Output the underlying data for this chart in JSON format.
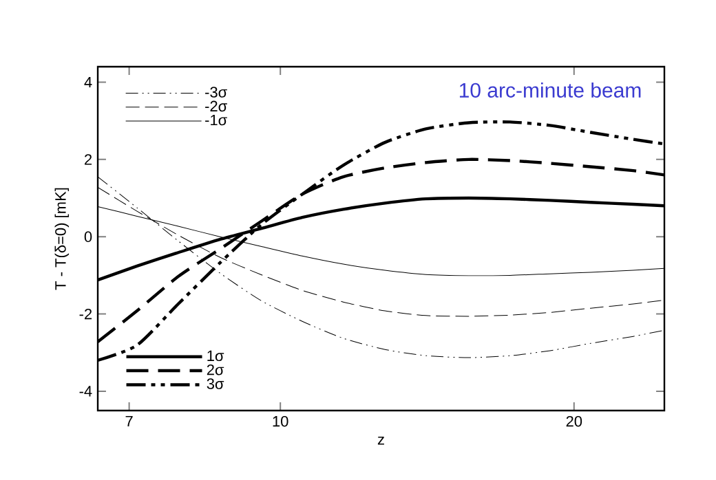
{
  "chart_data": {
    "type": "line",
    "xlabel": "z",
    "ylabel": "T - T(δ=0)   [mK]",
    "annotations": [
      "10 arc-minute beam"
    ],
    "x": [
      6.5,
      7.13,
      7.86,
      8.67,
      9.55,
      10.53,
      11.6,
      12.8,
      14.1,
      15.6,
      17.2,
      18.9,
      20.8,
      23.0,
      24.75
    ],
    "series": [
      {
        "name": "-3σ",
        "color": "#000000",
        "line_style": "dashdotdotted",
        "values": [
          1.55,
          0.75,
          -0.11,
          -0.94,
          -1.65,
          -2.19,
          -2.63,
          -2.92,
          -3.08,
          -3.13,
          -3.08,
          -2.95,
          -2.76,
          -2.58,
          -2.42
        ]
      },
      {
        "name": "-2σ",
        "color": "#000000",
        "line_style": "dashed",
        "values": [
          1.28,
          0.66,
          0.04,
          -0.53,
          -0.98,
          -1.39,
          -1.69,
          -1.92,
          -2.04,
          -2.06,
          -2.03,
          -1.96,
          -1.85,
          -1.74,
          -1.64
        ]
      },
      {
        "name": "-1σ",
        "color": "#000000",
        "line_style": "solid",
        "values": [
          0.78,
          0.53,
          0.27,
          0.0,
          -0.25,
          -0.5,
          -0.71,
          -0.87,
          -0.98,
          -1.01,
          -1.0,
          -0.96,
          -0.92,
          -0.87,
          -0.82
        ]
      },
      {
        "name": "1σ",
        "color": "#000000",
        "line_style": "solid",
        "values": [
          -1.12,
          -0.76,
          -0.41,
          -0.07,
          0.21,
          0.5,
          0.71,
          0.87,
          0.98,
          1.0,
          0.98,
          0.94,
          0.89,
          0.84,
          0.8
        ]
      },
      {
        "name": "2σ",
        "color": "#000000",
        "line_style": "dashed",
        "values": [
          -2.72,
          -1.92,
          -1.03,
          -0.32,
          0.39,
          1.1,
          1.55,
          1.78,
          1.92,
          2.0,
          1.97,
          1.9,
          1.81,
          1.71,
          1.6
        ]
      },
      {
        "name": "3σ",
        "color": "#000000",
        "line_style": "dashdotdotted",
        "values": [
          -3.2,
          -2.81,
          -1.74,
          -0.68,
          0.3,
          1.1,
          1.85,
          2.44,
          2.79,
          2.95,
          2.97,
          2.88,
          2.7,
          2.52,
          2.4
        ]
      }
    ],
    "log": "x",
    "xlim": [
      6.5,
      24.75
    ],
    "ylim": [
      -4.5,
      4.4
    ],
    "xticks": [
      7,
      10,
      20
    ],
    "yticks": [
      -4,
      -2,
      0,
      2,
      4
    ],
    "legend": "left",
    "marker": "none",
    "grid": false
  }
}
